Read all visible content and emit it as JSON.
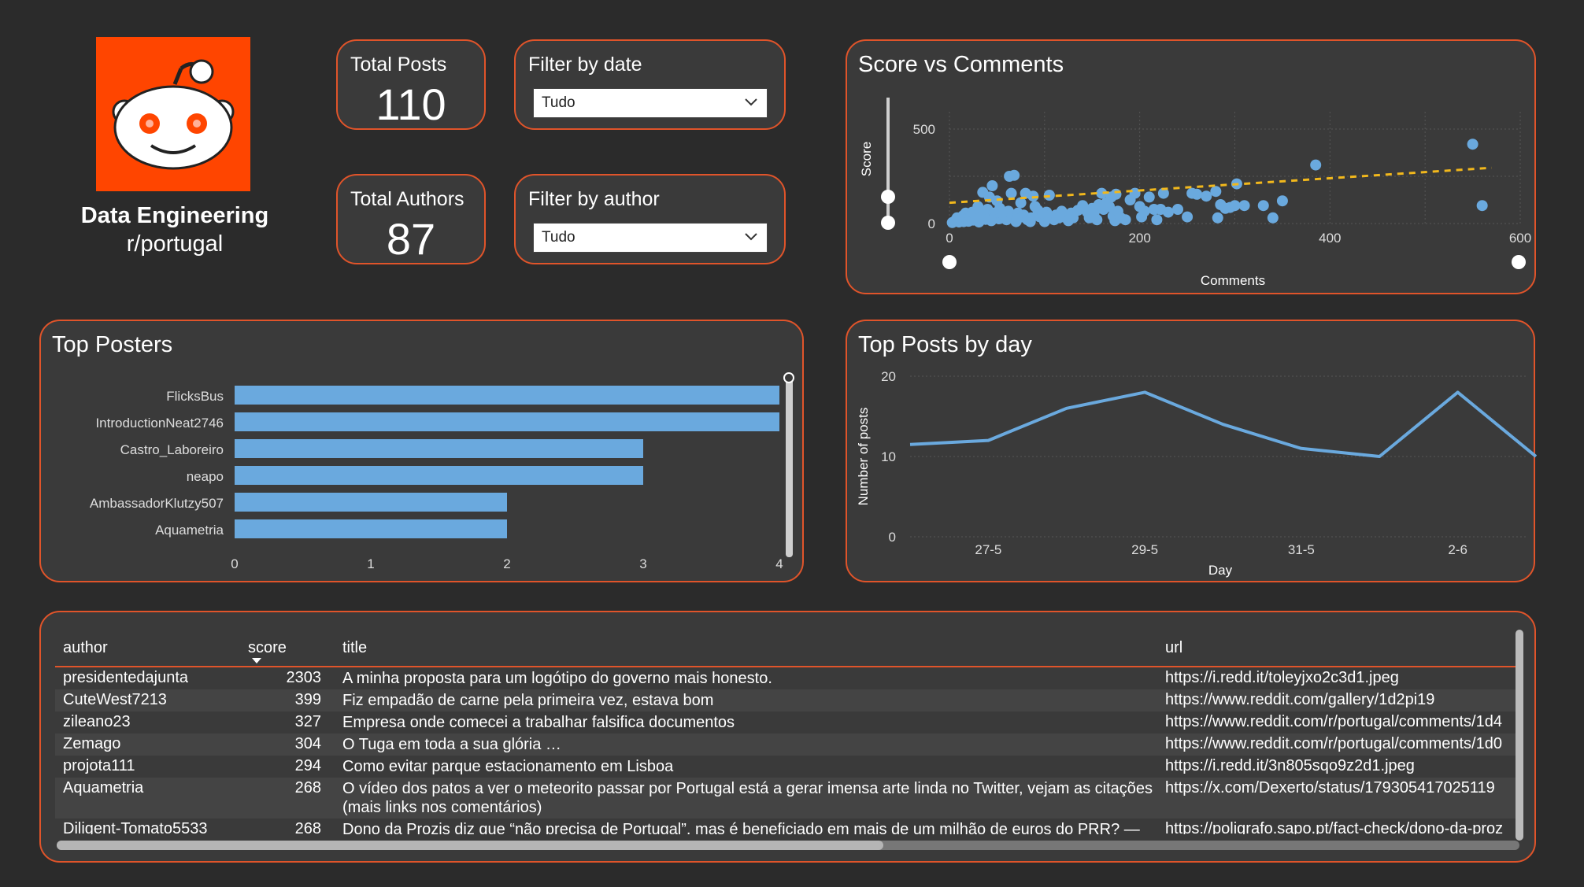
{
  "brand": {
    "title": "Data Engineering",
    "subtitle": "r/portugal",
    "logo_icon": "reddit-snoo-icon",
    "logo_bg": "#ff4500"
  },
  "kpis": {
    "posts_label": "Total Posts",
    "posts_value": "110",
    "authors_label": "Total Authors",
    "authors_value": "87"
  },
  "filters": {
    "date_label": "Filter by date",
    "date_value": "Tudo",
    "author_label": "Filter by author",
    "author_value": "Tudo"
  },
  "colors": {
    "accent": "#e0542a",
    "bar": "#6aa9de",
    "trend": "#f2b81c"
  },
  "chart_data": [
    {
      "type": "scatter",
      "title": "Score vs Comments",
      "xlabel": "Comments",
      "ylabel": "Score",
      "xlim": [
        0,
        600
      ],
      "ylim": [
        0,
        550
      ],
      "x_ticks": [
        "0",
        "200",
        "400",
        "600"
      ],
      "y_ticks": [
        "0",
        "500"
      ],
      "trendline": {
        "style": "dashed",
        "from": [
          0,
          110
        ],
        "to": [
          570,
          295
        ]
      },
      "points": [
        [
          3,
          5
        ],
        [
          6,
          15
        ],
        [
          8,
          30
        ],
        [
          10,
          8
        ],
        [
          12,
          20
        ],
        [
          14,
          40
        ],
        [
          15,
          10
        ],
        [
          17,
          55
        ],
        [
          18,
          25
        ],
        [
          20,
          12
        ],
        [
          22,
          35
        ],
        [
          24,
          60
        ],
        [
          25,
          18
        ],
        [
          27,
          45
        ],
        [
          29,
          25
        ],
        [
          30,
          90
        ],
        [
          31,
          8
        ],
        [
          33,
          30
        ],
        [
          35,
          165
        ],
        [
          36,
          50
        ],
        [
          38,
          22
        ],
        [
          40,
          75
        ],
        [
          42,
          140
        ],
        [
          44,
          15
        ],
        [
          45,
          200
        ],
        [
          47,
          55
        ],
        [
          48,
          35
        ],
        [
          50,
          120
        ],
        [
          52,
          25
        ],
        [
          53,
          80
        ],
        [
          55,
          30
        ],
        [
          57,
          45
        ],
        [
          60,
          20
        ],
        [
          62,
          65
        ],
        [
          63,
          250
        ],
        [
          65,
          160
        ],
        [
          66,
          40
        ],
        [
          68,
          255
        ],
        [
          70,
          10
        ],
        [
          72,
          55
        ],
        [
          75,
          110
        ],
        [
          76,
          35
        ],
        [
          78,
          45
        ],
        [
          80,
          160
        ],
        [
          82,
          20
        ],
        [
          85,
          10
        ],
        [
          86,
          30
        ],
        [
          88,
          145
        ],
        [
          90,
          90
        ],
        [
          93,
          70
        ],
        [
          95,
          35
        ],
        [
          98,
          50
        ],
        [
          100,
          10
        ],
        [
          102,
          60
        ],
        [
          104,
          40
        ],
        [
          105,
          150
        ],
        [
          110,
          20
        ],
        [
          112,
          45
        ],
        [
          115,
          30
        ],
        [
          118,
          65
        ],
        [
          120,
          35
        ],
        [
          125,
          15
        ],
        [
          128,
          55
        ],
        [
          130,
          30
        ],
        [
          135,
          70
        ],
        [
          140,
          95
        ],
        [
          145,
          60
        ],
        [
          147,
          30
        ],
        [
          150,
          80
        ],
        [
          152,
          55
        ],
        [
          155,
          20
        ],
        [
          157,
          100
        ],
        [
          160,
          160
        ],
        [
          162,
          75
        ],
        [
          165,
          110
        ],
        [
          168,
          90
        ],
        [
          170,
          140
        ],
        [
          172,
          40
        ],
        [
          174,
          15
        ],
        [
          175,
          155
        ],
        [
          177,
          65
        ],
        [
          180,
          30
        ],
        [
          185,
          20
        ],
        [
          190,
          125
        ],
        [
          195,
          160
        ],
        [
          200,
          90
        ],
        [
          202,
          35
        ],
        [
          205,
          65
        ],
        [
          210,
          140
        ],
        [
          215,
          75
        ],
        [
          218,
          20
        ],
        [
          222,
          75
        ],
        [
          225,
          160
        ],
        [
          230,
          60
        ],
        [
          240,
          75
        ],
        [
          250,
          35
        ],
        [
          255,
          160
        ],
        [
          260,
          155
        ],
        [
          270,
          145
        ],
        [
          280,
          170
        ],
        [
          282,
          30
        ],
        [
          285,
          100
        ],
        [
          290,
          80
        ],
        [
          295,
          85
        ],
        [
          300,
          95
        ],
        [
          302,
          210
        ],
        [
          310,
          95
        ],
        [
          330,
          95
        ],
        [
          340,
          30
        ],
        [
          350,
          120
        ],
        [
          385,
          310
        ],
        [
          550,
          420
        ],
        [
          560,
          95
        ]
      ]
    },
    {
      "type": "bar",
      "title": "Top Posters",
      "orientation": "horizontal",
      "categories": [
        "FlicksBus",
        "IntroductionNeat2746",
        "Castro_Laboreiro",
        "neapo",
        "AmbassadorKlutzy507",
        "Aquametria"
      ],
      "values": [
        4,
        4,
        3,
        3,
        2,
        2
      ],
      "xlim": [
        0,
        4
      ],
      "x_ticks": [
        "0",
        "1",
        "2",
        "3",
        "4"
      ]
    },
    {
      "type": "line",
      "title": "Top Posts by day",
      "xlabel": "Day",
      "ylabel": "Number of posts",
      "x": [
        "26-5",
        "27-5",
        "28-5",
        "29-5",
        "30-5",
        "31-5",
        "1-6",
        "2-6",
        "3-6"
      ],
      "values": [
        11.5,
        12,
        16,
        18,
        14,
        11,
        10,
        18,
        10
      ],
      "x_ticks": [
        "27-5",
        "29-5",
        "31-5",
        "2-6"
      ],
      "y_ticks": [
        "0",
        "10",
        "20"
      ],
      "ylim": [
        0,
        20
      ]
    },
    {
      "type": "table",
      "columns": [
        "author",
        "score",
        "title",
        "url"
      ],
      "sort_column": "score",
      "rows": [
        [
          "presidentedajunta",
          "2303",
          "A minha proposta para um logótipo do governo mais honesto.",
          "https://i.redd.it/toleyjxo2c3d1.jpeg"
        ],
        [
          "CuteWest7213",
          "399",
          "Fiz empadão de carne pela primeira vez, estava bom",
          "https://www.reddit.com/gallery/1d2pi19"
        ],
        [
          "zileano23",
          "327",
          "Empresa onde comecei a trabalhar falsifica documentos",
          "https://www.reddit.com/r/portugal/comments/1d4"
        ],
        [
          "Zemago",
          "304",
          "O Tuga em toda a sua glória …",
          "https://www.reddit.com/r/portugal/comments/1d0"
        ],
        [
          "projota111",
          "294",
          "Como evitar parque estacionamento em Lisboa",
          "https://i.redd.it/3n805sqo9z2d1.jpeg"
        ],
        [
          "Aquametria",
          "268",
          "O vídeo dos patos a ver o meteorito passar por Portugal está a gerar imensa arte linda no Twitter, vejam as citações (mais links nos comentários)",
          "https://x.com/Dexerto/status/179305417025119"
        ],
        [
          "Diligent-Tomato5533",
          "268",
          "Dono da Prozis diz que “não precisa de Portugal”, mas é beneficiado em mais de um milhão de euros do PRR? — Polígrafo",
          "https://poligrafo.sapo.pt/fact-check/dono-da-proz"
        ]
      ]
    }
  ]
}
